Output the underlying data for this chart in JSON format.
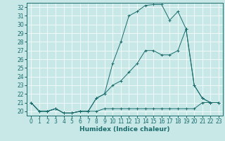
{
  "title": "",
  "xlabel": "Humidex (Indice chaleur)",
  "bg_color": "#c8e8e8",
  "line_color": "#1a6b6b",
  "xlim": [
    -0.5,
    23.5
  ],
  "ylim": [
    19.5,
    32.5
  ],
  "yticks": [
    20,
    21,
    22,
    23,
    24,
    25,
    26,
    27,
    28,
    29,
    30,
    31,
    32
  ],
  "xticks": [
    0,
    1,
    2,
    3,
    4,
    5,
    6,
    7,
    8,
    9,
    10,
    11,
    12,
    13,
    14,
    15,
    16,
    17,
    18,
    19,
    20,
    21,
    22,
    23
  ],
  "line1_x": [
    0,
    1,
    2,
    3,
    4,
    5,
    6,
    7,
    8,
    9,
    10,
    11,
    12,
    13,
    14,
    15,
    16,
    17,
    18,
    19,
    20,
    21,
    22,
    23
  ],
  "line1_y": [
    21.0,
    20.0,
    20.0,
    20.3,
    19.8,
    19.8,
    20.0,
    20.0,
    20.0,
    20.3,
    20.3,
    20.3,
    20.3,
    20.3,
    20.3,
    20.3,
    20.3,
    20.3,
    20.3,
    20.3,
    20.3,
    21.0,
    21.0,
    21.0
  ],
  "line2_x": [
    0,
    1,
    2,
    3,
    4,
    5,
    6,
    7,
    8,
    9,
    10,
    11,
    12,
    13,
    14,
    15,
    16,
    17,
    18,
    19,
    20,
    21,
    22,
    23
  ],
  "line2_y": [
    21.0,
    20.0,
    20.0,
    20.3,
    19.8,
    19.8,
    20.0,
    20.0,
    21.5,
    22.0,
    23.0,
    23.5,
    24.5,
    25.5,
    27.0,
    27.0,
    26.5,
    26.5,
    27.0,
    29.5,
    23.0,
    21.5,
    21.0,
    21.0
  ],
  "line3_x": [
    0,
    1,
    2,
    3,
    4,
    5,
    6,
    7,
    8,
    9,
    10,
    11,
    12,
    13,
    14,
    15,
    16,
    17,
    18,
    19,
    20,
    21,
    22,
    23
  ],
  "line3_y": [
    21.0,
    20.0,
    20.0,
    20.3,
    19.8,
    19.8,
    20.0,
    20.0,
    21.5,
    22.0,
    25.5,
    28.0,
    31.0,
    31.5,
    32.2,
    32.3,
    32.3,
    30.5,
    31.5,
    29.5,
    23.0,
    21.5,
    21.0,
    21.0
  ],
  "tick_fontsize": 5.5,
  "xlabel_fontsize": 6.5
}
